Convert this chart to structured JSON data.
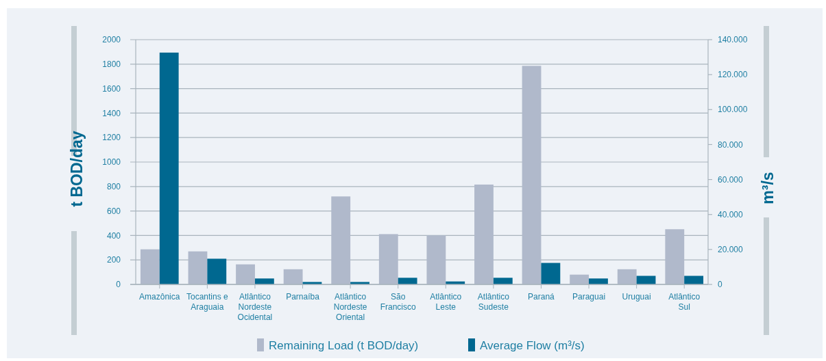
{
  "chart_data": {
    "type": "bar",
    "categories": [
      "Amazônica",
      "Tocantins e Araguaia",
      "Atlântico Nordeste Ocidental",
      "Parnaíba",
      "Atlântico Nordeste Oriental",
      "São Francisco",
      "Atlântico Leste",
      "Atlântico Sudeste",
      "Paraná",
      "Paraguai",
      "Uruguai",
      "Atlântico Sul"
    ],
    "series": [
      {
        "name": "Remaining Load (t BOD/day)",
        "color": "#b0b9cb",
        "values": [
          287,
          270,
          164,
          124,
          719,
          411,
          401,
          816,
          1786,
          80,
          124,
          451
        ]
      },
      {
        "name": "Average Flow (m³/s)",
        "color": "#006890",
        "axis": "y2",
        "values": [
          132600,
          14700,
          3400,
          1400,
          1400,
          3800,
          1700,
          3800,
          12300,
          3400,
          4900,
          4900
        ]
      }
    ],
    "ylabel": "t BOD/day",
    "y2label": "m³/s",
    "ylim": [
      0,
      2000
    ],
    "yticks": [
      0,
      200,
      400,
      600,
      800,
      1000,
      1200,
      1400,
      1600,
      1800,
      2000
    ],
    "y2lim": [
      0,
      140000
    ],
    "y2ticks": [
      0,
      {
        "value": 20000,
        "label": "20.000"
      },
      {
        "value": 40000,
        "label": "40.000"
      },
      {
        "value": 60000,
        "label": "60.000"
      },
      {
        "value": 80000,
        "label": "80.000"
      },
      {
        "value": 100000,
        "label": "100.000"
      },
      {
        "value": 120000,
        "label": "120.000"
      },
      {
        "value": 140000,
        "label": "140.000"
      }
    ],
    "grid": "y",
    "legend": "bottom"
  }
}
